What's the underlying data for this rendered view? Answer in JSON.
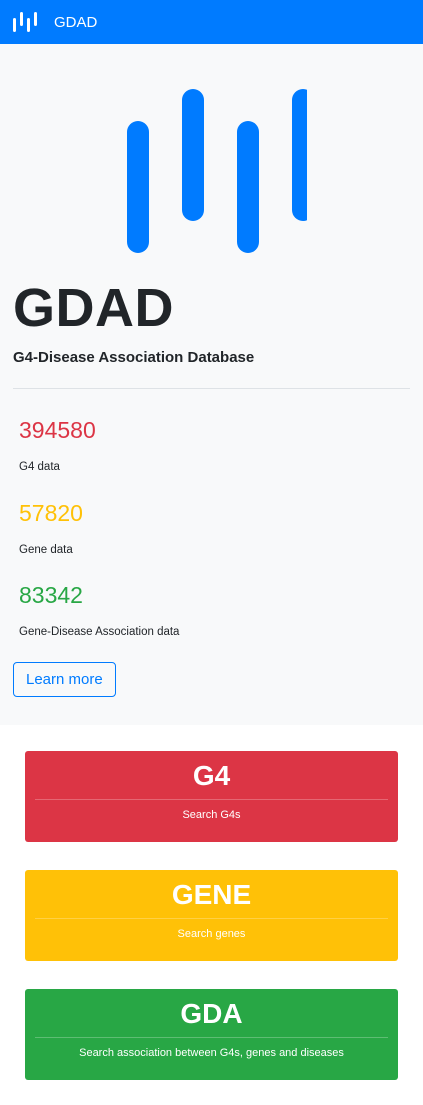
{
  "navbar": {
    "brand": "GDAD",
    "logo_icon": "gdad-bars-icon"
  },
  "hero": {
    "title": "GDAD",
    "subtitle": "G4-Disease Association Database",
    "stats": [
      {
        "value": "394580",
        "label": "G4 data",
        "color": "#dc3545"
      },
      {
        "value": "57820",
        "label": "Gene data",
        "color": "#ffc107"
      },
      {
        "value": "83342",
        "label": "Gene-Disease Association data",
        "color": "#28a745"
      }
    ],
    "learn_more_label": "Learn more"
  },
  "cards": [
    {
      "title": "G4",
      "text": "Search G4s",
      "color": "#dc3545"
    },
    {
      "title": "GENE",
      "text": "Search genes",
      "color": "#ffc107"
    },
    {
      "title": "GDA",
      "text": "Search association between G4s, genes and diseases",
      "color": "#28a745"
    }
  ],
  "colors": {
    "primary": "#007bff",
    "hero_bg": "#f8f9fa"
  }
}
